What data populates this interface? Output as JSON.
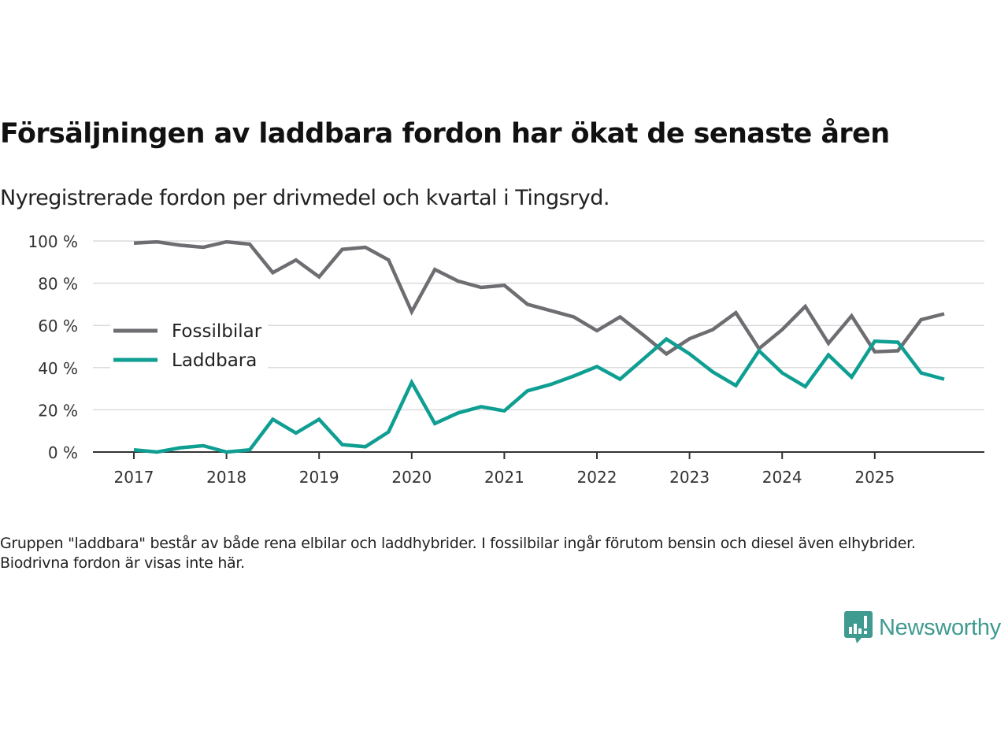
{
  "title": "Försäljningen av laddbara fordon har ökat de senaste åren",
  "subtitle": "Nyregistrerade fordon per drivmedel och kvartal i Tingsryd.",
  "note": "Gruppen \"laddbara\" består av både rena elbilar och laddhybrider. I fossilbilar ingår förutom bensin och diesel även elhybrider. Biodrivna fordon är visas inte här.",
  "logo": {
    "text": "Newsworthy",
    "icon": "newsworthy-chart-bubble-icon",
    "color": "#3f9a8f"
  },
  "chart_data": {
    "type": "line",
    "title": "Försäljningen av laddbara fordon har ökat de senaste åren",
    "subtitle": "Nyregistrerade fordon per drivmedel och kvartal i Tingsryd.",
    "xlabel": "",
    "ylabel": "",
    "x_unit": "quarter",
    "x": [
      "2017 Q1",
      "2017 Q2",
      "2017 Q3",
      "2017 Q4",
      "2018 Q1",
      "2018 Q2",
      "2018 Q3",
      "2018 Q4",
      "2019 Q1",
      "2019 Q2",
      "2019 Q3",
      "2019 Q4",
      "2020 Q1",
      "2020 Q2",
      "2020 Q3",
      "2020 Q4",
      "2021 Q1",
      "2021 Q2",
      "2021 Q3",
      "2021 Q4",
      "2022 Q1",
      "2022 Q2",
      "2022 Q3",
      "2022 Q4",
      "2023 Q1",
      "2023 Q2",
      "2023 Q3",
      "2023 Q4",
      "2024 Q1",
      "2024 Q2",
      "2024 Q3",
      "2024 Q4",
      "2025 Q1",
      "2025 Q2",
      "2025 Q3",
      "2025 Q4"
    ],
    "x_ticks": [
      "2017",
      "2018",
      "2019",
      "2020",
      "2021",
      "2022",
      "2023",
      "2024",
      "2025"
    ],
    "y_ticks": [
      "0 %",
      "20 %",
      "40 %",
      "60 %",
      "80 %",
      "100 %"
    ],
    "y_tick_values": [
      0,
      20,
      40,
      60,
      80,
      100
    ],
    "ylim": [
      0,
      100
    ],
    "xlim_years": [
      2016.58,
      2026.2
    ],
    "grid": true,
    "legend_position": "left-middle",
    "series": [
      {
        "name": "Fossilbilar",
        "color": "#6e6e72",
        "values": [
          99,
          99.6,
          98,
          97,
          99.6,
          98.5,
          85,
          91,
          83,
          96,
          97,
          91,
          66.5,
          86.5,
          81,
          78,
          79,
          70,
          67,
          64,
          57.5,
          64,
          55.5,
          46.5,
          53.7,
          58,
          66,
          49,
          58,
          69,
          51.5,
          64.5,
          47.5,
          48,
          62.7,
          65.5
        ]
      },
      {
        "name": "Laddbara",
        "color": "#0f9e92",
        "values": [
          1,
          0,
          2,
          3,
          0,
          1,
          15.5,
          9,
          15.5,
          3.5,
          2.5,
          9.5,
          33,
          13.5,
          18.5,
          21.5,
          19.5,
          29,
          32,
          36,
          40.5,
          34.5,
          44,
          53.5,
          46.5,
          38,
          31.5,
          48,
          37.5,
          31,
          46,
          35.5,
          52.5,
          52,
          37.5,
          34.5
        ]
      }
    ]
  }
}
